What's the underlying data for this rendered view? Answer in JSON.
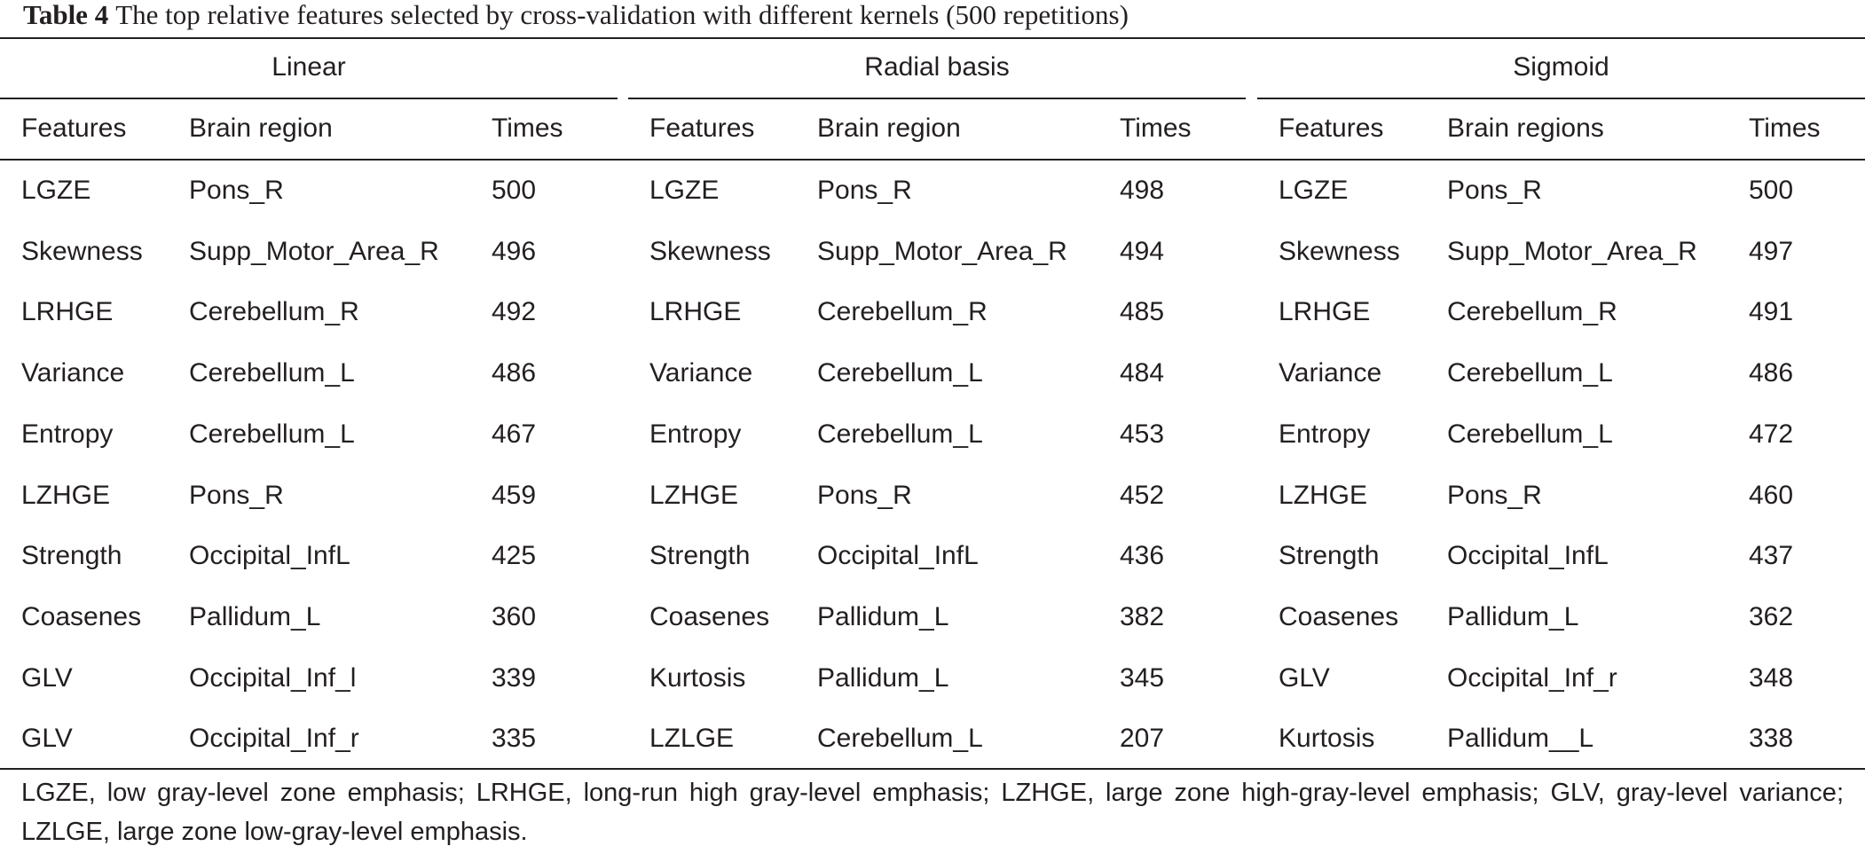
{
  "caption": {
    "label": "Table 4",
    "text": "The top relative features selected by cross-validation with different kernels (500 repetitions)"
  },
  "groups": [
    "Linear",
    "Radial basis",
    "Sigmoid"
  ],
  "column_headers": [
    [
      "Features",
      "Brain region",
      "Times"
    ],
    [
      "Features",
      "Brain region",
      "Times"
    ],
    [
      "Features",
      "Brain regions",
      "Times"
    ]
  ],
  "rows": [
    [
      "LGZE",
      "Pons_R",
      "500",
      "LGZE",
      "Pons_R",
      "498",
      "LGZE",
      "Pons_R",
      "500"
    ],
    [
      "Skewness",
      "Supp_Motor_Area_R",
      "496",
      "Skewness",
      "Supp_Motor_Area_R",
      "494",
      "Skewness",
      "Supp_Motor_Area_R",
      "497"
    ],
    [
      "LRHGE",
      "Cerebellum_R",
      "492",
      "LRHGE",
      "Cerebellum_R",
      "485",
      "LRHGE",
      "Cerebellum_R",
      "491"
    ],
    [
      "Variance",
      "Cerebellum_L",
      "486",
      "Variance",
      "Cerebellum_L",
      "484",
      "Variance",
      "Cerebellum_L",
      "486"
    ],
    [
      "Entropy",
      "Cerebellum_L",
      "467",
      "Entropy",
      "Cerebellum_L",
      "453",
      "Entropy",
      "Cerebellum_L",
      "472"
    ],
    [
      "LZHGE",
      "Pons_R",
      "459",
      "LZHGE",
      "Pons_R",
      "452",
      "LZHGE",
      "Pons_R",
      "460"
    ],
    [
      "Strength",
      "Occipital_InfL",
      "425",
      "Strength",
      "Occipital_InfL",
      "436",
      "Strength",
      "Occipital_InfL",
      "437"
    ],
    [
      "Coasenes",
      "Pallidum_L",
      "360",
      "Coasenes",
      "Pallidum_L",
      "382",
      "Coasenes",
      "Pallidum_L",
      "362"
    ],
    [
      "GLV",
      "Occipital_Inf_l",
      "339",
      "Kurtosis",
      "Pallidum_L",
      "345",
      "GLV",
      "Occipital_Inf_r",
      "348"
    ],
    [
      "GLV",
      "Occipital_Inf_r",
      "335",
      "LZLGE",
      "Cerebellum_L",
      "207",
      "Kurtosis",
      "Pallidum__L",
      "338"
    ]
  ],
  "footnote": "LGZE, low gray-level zone emphasis; LRHGE, long-run high gray-level emphasis; LZHGE, large zone high-gray-level emphasis; GLV, gray-level variance; LZLGE, large zone low-gray-level emphasis."
}
